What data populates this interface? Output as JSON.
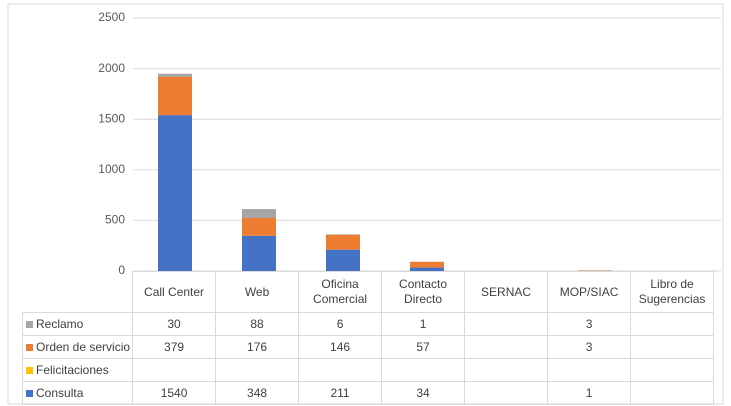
{
  "chart_data": {
    "type": "stacked_bar",
    "categories": [
      "Call Center",
      "Web",
      "Oficina Comercial",
      "Contacto Directo",
      "SERNAC",
      "MOP/SIAC",
      "Libro de Sugerencias"
    ],
    "series": [
      {
        "name": "Reclamo",
        "color": "#a5a5a5",
        "values": [
          30,
          88,
          6,
          1,
          null,
          3,
          null
        ]
      },
      {
        "name": "Orden de servicio",
        "color": "#ed7d31",
        "values": [
          379,
          176,
          146,
          57,
          null,
          3,
          null
        ]
      },
      {
        "name": "Felicitaciones",
        "color": "#ffc000",
        "values": [
          null,
          null,
          null,
          null,
          null,
          null,
          null
        ]
      },
      {
        "name": "Consulta",
        "color": "#4472c4",
        "values": [
          1540,
          348,
          211,
          34,
          null,
          1,
          null
        ]
      }
    ],
    "ylim": [
      0,
      2500
    ],
    "yticks": [
      0,
      500,
      1000,
      1500,
      2000,
      2500
    ],
    "grid": true,
    "legend": "table"
  }
}
